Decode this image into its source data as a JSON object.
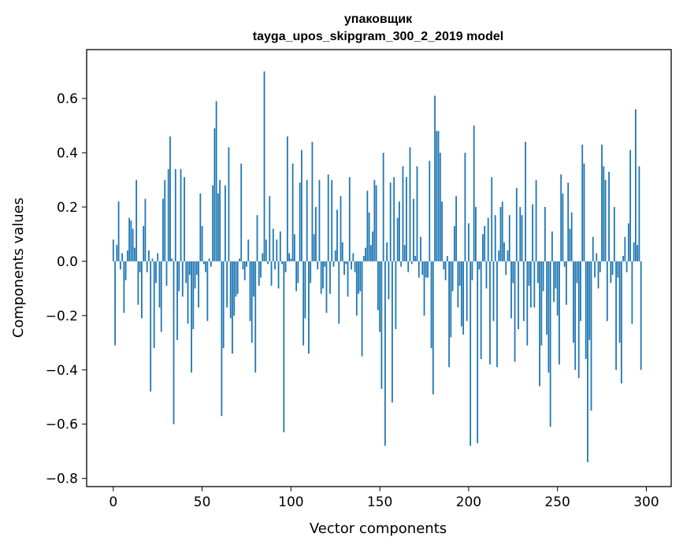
{
  "chart_data": {
    "type": "bar",
    "title": "упаковщик",
    "subtitle": "tayga_upos_skipgram_300_2_2019 model",
    "xlabel": "Vector components",
    "ylabel": "Components values",
    "xlim": [
      -15,
      314
    ],
    "ylim": [
      -0.83,
      0.78
    ],
    "xticks": [
      0,
      50,
      100,
      150,
      200,
      250,
      300
    ],
    "xtick_labels": [
      "0",
      "50",
      "100",
      "150",
      "200",
      "250",
      "300"
    ],
    "yticks": [
      -0.8,
      -0.6,
      -0.4,
      -0.2,
      0.0,
      0.2,
      0.4,
      0.6
    ],
    "ytick_labels": [
      "−0.8",
      "−0.6",
      "−0.4",
      "−0.2",
      "0.0",
      "0.2",
      "0.4",
      "0.6"
    ],
    "grid": false,
    "bar_color": "#1f77b4",
    "values": [
      0.08,
      -0.31,
      0.06,
      0.22,
      -0.03,
      0.03,
      -0.19,
      -0.07,
      0.04,
      0.16,
      0.15,
      0.12,
      0.05,
      0.3,
      -0.16,
      -0.04,
      -0.21,
      0.13,
      0.23,
      -0.04,
      0.04,
      -0.48,
      0.01,
      -0.32,
      -0.08,
      0.03,
      -0.17,
      -0.26,
      0.23,
      0.3,
      -0.09,
      0.34,
      0.46,
      0.01,
      -0.6,
      0.34,
      -0.29,
      -0.11,
      0.34,
      -0.13,
      0.31,
      -0.08,
      -0.23,
      -0.05,
      -0.41,
      -0.25,
      -0.1,
      -0.05,
      -0.17,
      0.25,
      0.13,
      -0.01,
      -0.04,
      -0.22,
      0.01,
      -0.02,
      0.28,
      0.49,
      0.59,
      0.25,
      0.3,
      -0.57,
      -0.32,
      0.28,
      -0.17,
      0.42,
      -0.21,
      -0.34,
      -0.2,
      -0.13,
      -0.12,
      0.01,
      0.36,
      -0.03,
      -0.07,
      -0.02,
      0.08,
      -0.22,
      -0.3,
      -0.13,
      -0.41,
      0.17,
      -0.09,
      -0.06,
      0.03,
      0.7,
      0.08,
      -0.01,
      0.24,
      -0.09,
      0.12,
      -0.03,
      0.08,
      -0.1,
      0.11,
      -0.01,
      -0.63,
      -0.04,
      0.46,
      0.03,
      0.01,
      0.36,
      0.1,
      -0.11,
      -0.08,
      0.29,
      0.41,
      -0.31,
      -0.21,
      0.3,
      -0.34,
      -0.08,
      0.44,
      0.1,
      0.2,
      -0.03,
      0.3,
      -0.12,
      -0.1,
      -0.02,
      -0.19,
      0.32,
      -0.12,
      0.3,
      -0.02,
      0.04,
      0.19,
      -0.23,
      0.24,
      0.07,
      -0.05,
      -0.01,
      -0.13,
      0.31,
      -0.03,
      0.03,
      -0.04,
      -0.2,
      -0.12,
      -0.11,
      -0.35,
      0.02,
      0.05,
      0.26,
      0.18,
      0.06,
      0.11,
      0.3,
      0.28,
      -0.18,
      -0.26,
      -0.47,
      0.4,
      -0.68,
      0.07,
      -0.14,
      0.29,
      -0.52,
      0.31,
      -0.25,
      0.16,
      0.22,
      -0.02,
      0.35,
      0.06,
      0.31,
      -0.04,
      0.42,
      -0.01,
      0.23,
      0.02,
      0.35,
      -0.06,
      0.09,
      -0.05,
      -0.2,
      -0.06,
      -0.06,
      0.37,
      -0.32,
      -0.49,
      0.61,
      0.48,
      0.48,
      0.4,
      0.22,
      -0.03,
      -0.07,
      0.02,
      -0.39,
      -0.28,
      -0.11,
      0.13,
      0.24,
      -0.17,
      -0.09,
      -0.24,
      -0.27,
      0.4,
      -0.22,
      0.14,
      -0.68,
      -0.07,
      0.5,
      0.2,
      -0.67,
      -0.03,
      -0.36,
      0.1,
      0.13,
      -0.1,
      0.16,
      -0.38,
      0.31,
      -0.22,
      0.17,
      -0.39,
      0.04,
      0.2,
      0.22,
      0.07,
      -0.05,
      0.04,
      0.17,
      -0.21,
      -0.08,
      -0.37,
      0.27,
      -0.25,
      0.2,
      0.17,
      -0.22,
      0.44,
      -0.31,
      -0.09,
      -0.17,
      0.21,
      -0.17,
      0.3,
      -0.08,
      -0.46,
      -0.31,
      -0.11,
      0.2,
      -0.27,
      -0.41,
      -0.61,
      0.11,
      -0.15,
      -0.1,
      -0.2,
      -0.38,
      0.32,
      0.25,
      -0.02,
      -0.16,
      0.29,
      0.12,
      0.18,
      -0.3,
      -0.4,
      -0.08,
      -0.43,
      -0.22,
      0.43,
      0.36,
      -0.36,
      -0.74,
      -0.29,
      -0.55,
      0.09,
      -0.06,
      0.03,
      -0.1,
      -0.04,
      0.43,
      0.35,
      0.3,
      -0.22,
      0.33,
      -0.08,
      -0.05,
      0.2,
      -0.4,
      -0.06,
      -0.3,
      -0.45,
      0.02,
      0.09,
      -0.04,
      0.14,
      0.41,
      -0.23,
      0.07,
      0.56,
      0.06,
      0.35,
      -0.4
    ]
  }
}
